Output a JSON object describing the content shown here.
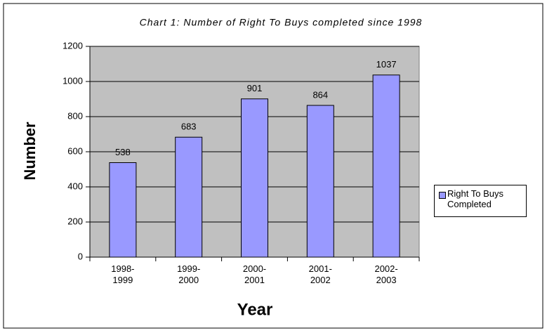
{
  "chart_data": {
    "type": "bar",
    "title": "Chart 1: Number of Right To Buys completed since 1998",
    "x_label": "Year",
    "y_label": "Number",
    "categories": [
      "1998-1999",
      "1999-2000",
      "2000-2001",
      "2001-2002",
      "2002-2003"
    ],
    "series": [
      {
        "name": "Right To Buys Completed",
        "color": "#9999ff",
        "values": [
          538,
          683,
          901,
          864,
          1037
        ]
      }
    ],
    "ylim": [
      0,
      1200
    ],
    "yticks": [
      0,
      200,
      400,
      600,
      800,
      1000,
      1200
    ],
    "grid": true,
    "legend": "right"
  }
}
